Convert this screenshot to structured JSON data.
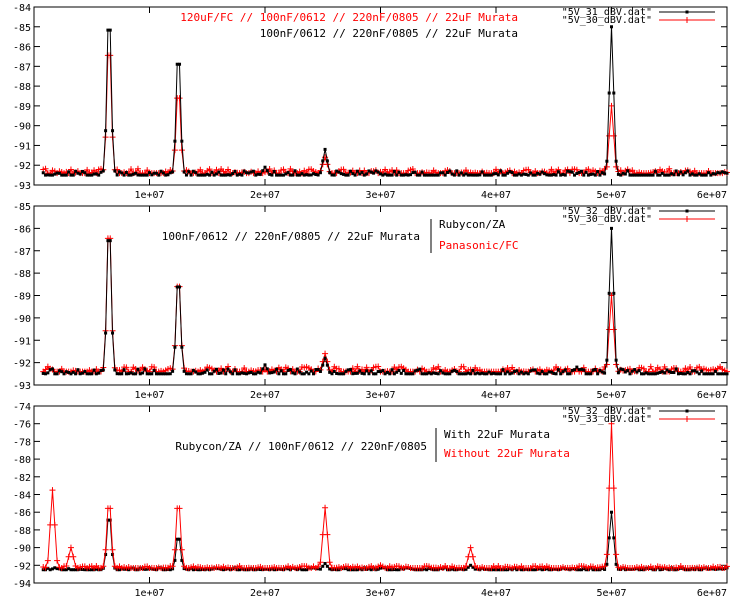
{
  "chart_data": [
    {
      "type": "line",
      "xlim": [
        0,
        60000000
      ],
      "ylim": [
        -93,
        -84
      ],
      "xticks": [
        10000000,
        20000000,
        30000000,
        40000000,
        50000000,
        60000000
      ],
      "xtick_labels": [
        "1e+07",
        "2e+07",
        "3e+07",
        "4e+07",
        "5e+07",
        "6e+07"
      ],
      "yticks": [
        -93,
        -92,
        -91,
        -90,
        -89,
        -88,
        -87,
        -86,
        -85,
        -84
      ],
      "ytick_labels": [
        "-93",
        "-92",
        "-91",
        "-90",
        "-89",
        "-88",
        "-87",
        "-86",
        "-85",
        "-84"
      ],
      "legend_position": "top-right",
      "annotations": [
        {
          "text": "120uF/FC // 100nF/0612 // 220nF/0805 // 22uF Murata",
          "color": "#ff0000"
        },
        {
          "text": "100nF/0612 // 220nF/0805 // 22uF Murata",
          "color": "#000000"
        }
      ],
      "series": [
        {
          "name": "\"5V_31_dBV.dat\"",
          "color": "#000000",
          "baseline": -92.5,
          "peaks": [
            [
              6500000,
              -84.0
            ],
            [
              12500000,
              -86.0
            ],
            [
              25200000,
              -91.2
            ],
            [
              50000000,
              -85.0
            ],
            [
              20000000,
              -92.1
            ]
          ]
        },
        {
          "name": "\"5V_30_dBV.dat\"",
          "color": "#ff0000",
          "baseline": -92.4,
          "peaks": [
            [
              6500000,
              -85.5
            ],
            [
              12500000,
              -88.0
            ],
            [
              25200000,
              -91.6
            ],
            [
              50000000,
              -89.0
            ]
          ]
        }
      ]
    },
    {
      "type": "line",
      "xlim": [
        0,
        60000000
      ],
      "ylim": [
        -93,
        -85
      ],
      "xticks": [
        10000000,
        20000000,
        30000000,
        40000000,
        50000000,
        60000000
      ],
      "xtick_labels": [
        "1e+07",
        "2e+07",
        "3e+07",
        "4e+07",
        "5e+07",
        "6e+07"
      ],
      "yticks": [
        -93,
        -92,
        -91,
        -90,
        -89,
        -88,
        -87,
        -86,
        -85
      ],
      "ytick_labels": [
        "-93",
        "-92",
        "-91",
        "-90",
        "-89",
        "-88",
        "-87",
        "-86",
        "-85"
      ],
      "legend_position": "top-right",
      "annotations": [
        {
          "text": "100nF/0612 // 220nF/0805 // 22uF Murata",
          "color": "#000000"
        },
        {
          "text": "Rubycon/ZA",
          "color": "#000000"
        },
        {
          "text": "Panasonic/FC",
          "color": "#ff0000"
        }
      ],
      "series": [
        {
          "name": "\"5V_32_dBV.dat\"",
          "color": "#000000",
          "baseline": -92.5,
          "peaks": [
            [
              6500000,
              -85.6
            ],
            [
              12500000,
              -88.0
            ],
            [
              25200000,
              -91.8
            ],
            [
              50000000,
              -86.0
            ],
            [
              20000000,
              -92.1
            ],
            [
              47000000,
              -92.2
            ]
          ]
        },
        {
          "name": "\"5V_30_dBV.dat\"",
          "color": "#ff0000",
          "baseline": -92.4,
          "peaks": [
            [
              6500000,
              -85.5
            ],
            [
              12500000,
              -88.0
            ],
            [
              25200000,
              -91.6
            ],
            [
              50000000,
              -89.0
            ]
          ]
        }
      ]
    },
    {
      "type": "line",
      "xlim": [
        0,
        60000000
      ],
      "ylim": [
        -94,
        -74
      ],
      "xticks": [
        10000000,
        20000000,
        30000000,
        40000000,
        50000000,
        60000000
      ],
      "xtick_labels": [
        "1e+07",
        "2e+07",
        "3e+07",
        "4e+07",
        "5e+07",
        "6e+07"
      ],
      "yticks": [
        -94,
        -92,
        -90,
        -88,
        -86,
        -84,
        -82,
        -80,
        -78,
        -76,
        -74
      ],
      "ytick_labels": [
        "-94",
        "-92",
        "-90",
        "-88",
        "-86",
        "-84",
        "-82",
        "-80",
        "-78",
        "-76",
        "-74"
      ],
      "legend_position": "top-right",
      "annotations": [
        {
          "text": "Rubycon/ZA // 100nF/0612 // 220nF/0805",
          "color": "#000000"
        },
        {
          "text": "With 22uF Murata",
          "color": "#000000"
        },
        {
          "text": "Without 22uF Murata",
          "color": "#ff0000"
        }
      ],
      "series": [
        {
          "name": "\"5V_32_dBV.dat\"",
          "color": "#000000",
          "baseline": -92.5,
          "peaks": [
            [
              6500000,
              -86.0
            ],
            [
              12500000,
              -88.5
            ],
            [
              25200000,
              -91.8
            ],
            [
              50000000,
              -86.0
            ],
            [
              37800000,
              -92.0
            ]
          ]
        },
        {
          "name": "\"5V_33_dBV.dat\"",
          "color": "#ff0000",
          "baseline": -92.3,
          "peaks": [
            [
              1600000,
              -83.5
            ],
            [
              3200000,
              -90.0
            ],
            [
              6500000,
              -84.5
            ],
            [
              12500000,
              -84.5
            ],
            [
              25200000,
              -85.5
            ],
            [
              37800000,
              -90.0
            ],
            [
              50000000,
              -76.0
            ],
            [
              30000000,
              -92.0
            ]
          ]
        }
      ]
    }
  ]
}
